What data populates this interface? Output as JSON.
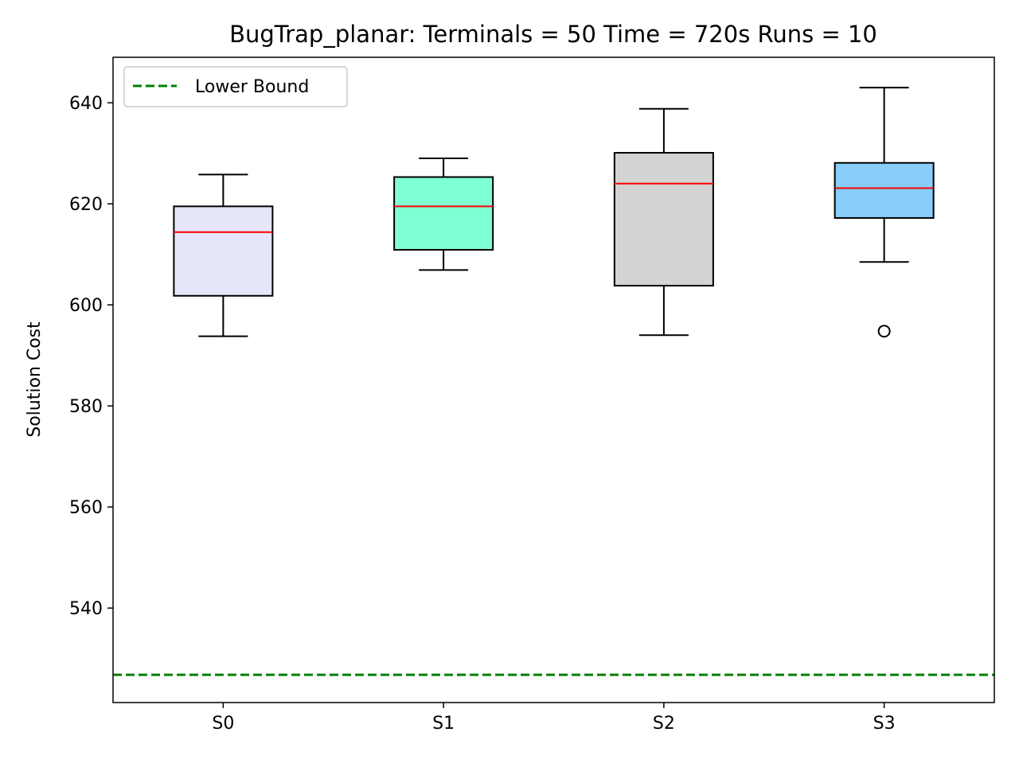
{
  "chart_data": {
    "type": "box",
    "title": "BugTrap_planar:  Terminals = 50  Time = 720s  Runs = 10",
    "xlabel": "",
    "ylabel": "Solution Cost",
    "ylim": [
      521.3,
      649.0
    ],
    "yticks": [
      "540",
      "560",
      "580",
      "600",
      "620",
      "640"
    ],
    "categories": [
      "S0",
      "S1",
      "S2",
      "S3"
    ],
    "boxes": [
      {
        "name": "S0",
        "whisker_low": 593.8,
        "q1": 601.8,
        "median": 614.4,
        "q3": 619.5,
        "whisker_high": 625.8,
        "fliers": [],
        "color": "#e6e6fa"
      },
      {
        "name": "S1",
        "whisker_low": 606.9,
        "q1": 610.9,
        "median": 619.5,
        "q3": 625.3,
        "whisker_high": 629.0,
        "fliers": [],
        "color": "#7fffd4"
      },
      {
        "name": "S2",
        "whisker_low": 594.0,
        "q1": 603.8,
        "median": 624.0,
        "q3": 630.1,
        "whisker_high": 638.8,
        "fliers": [],
        "color": "#d3d3d3"
      },
      {
        "name": "S3",
        "whisker_low": 608.5,
        "q1": 617.2,
        "median": 623.1,
        "q3": 628.1,
        "whisker_high": 643.0,
        "fliers": [
          594.8
        ],
        "color": "#87cefa"
      }
    ],
    "reference_lines": [
      {
        "name": "Lower Bound",
        "value": 526.8,
        "color": "#008000",
        "style": "dashed"
      }
    ],
    "median_color": "#ff0000",
    "grid": false,
    "legend": {
      "position": "top-left",
      "entries": [
        "Lower Bound"
      ]
    }
  }
}
